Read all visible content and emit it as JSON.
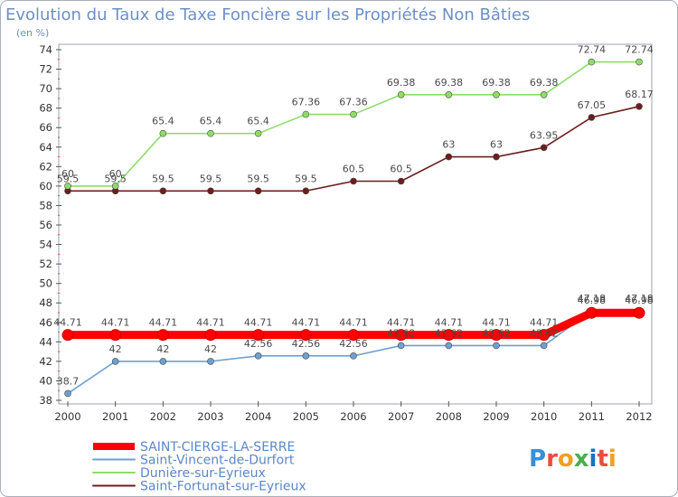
{
  "chart_data": {
    "type": "line",
    "title": "Evolution du Taux de Taxe Foncière sur les Propriétés Non Bâties",
    "unit_label": "(en %)",
    "x": [
      "2000",
      "2001",
      "2002",
      "2003",
      "2004",
      "2005",
      "2006",
      "2007",
      "2008",
      "2009",
      "2010",
      "2011",
      "2012"
    ],
    "ylim": [
      38,
      74
    ],
    "yticks": [
      38,
      40,
      42,
      44,
      46,
      48,
      50,
      52,
      54,
      56,
      58,
      60,
      62,
      64,
      66,
      68,
      70,
      72,
      74
    ],
    "series": [
      {
        "name": "SAINT-CIERGE-LA-SERRE",
        "color": "#ff0000",
        "values": [
          44.71,
          44.71,
          44.71,
          44.71,
          44.71,
          44.71,
          44.71,
          44.71,
          44.71,
          44.71,
          44.71,
          46.98,
          46.98
        ],
        "labels": [
          "44.71",
          "44.71",
          "44.71",
          "44.71",
          "44.71",
          "44.71",
          "44.71",
          "44.71",
          "44.71",
          "44.71",
          "44.71",
          "46.98",
          "46.98"
        ]
      },
      {
        "name": "Saint-Vincent-de-Durfort",
        "color": "#6fa0cf",
        "values": [
          38.7,
          42,
          42,
          42,
          42.56,
          42.56,
          42.56,
          43.62,
          43.62,
          43.62,
          43.62,
          47.18,
          47.18
        ],
        "labels": [
          "38.7",
          "42",
          "42",
          "42",
          "42.56",
          "42.56",
          "42.56",
          "43.62",
          "43.62",
          "43.62",
          "43.62",
          "47.18",
          "47.18"
        ]
      },
      {
        "name": "Dunière-sur-Eyrieux",
        "color": "#8fdc6a",
        "values": [
          60,
          60,
          65.4,
          65.4,
          65.4,
          67.36,
          67.36,
          69.38,
          69.38,
          69.38,
          69.38,
          72.74,
          72.74
        ],
        "labels": [
          "60",
          "60",
          "65.4",
          "65.4",
          "65.4",
          "67.36",
          "67.36",
          "69.38",
          "69.38",
          "69.38",
          "69.38",
          "72.74",
          "72.74"
        ]
      },
      {
        "name": "Saint-Fortunat-sur-Eyrieux",
        "color": "#6b1e1e",
        "values": [
          59.5,
          59.5,
          59.5,
          59.5,
          59.5,
          59.5,
          60.5,
          60.5,
          63,
          63,
          63.95,
          67.05,
          68.17
        ],
        "labels": [
          "59.5",
          "59.5",
          "59.5",
          "59.5",
          "59.5",
          "59.5",
          "60.5",
          "60.5",
          "63",
          "63",
          "63.95",
          "67.05",
          "68.17"
        ]
      }
    ],
    "logo_text": "Proxiti"
  }
}
